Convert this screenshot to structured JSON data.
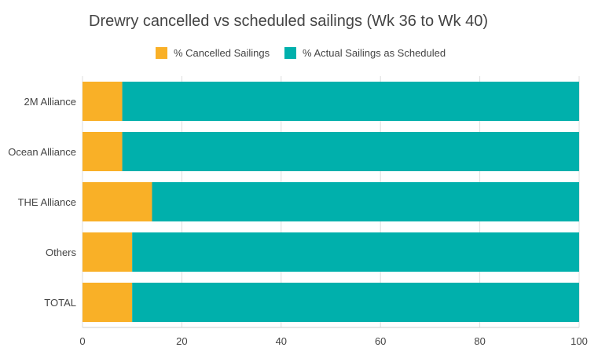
{
  "chart_data": {
    "type": "bar",
    "orientation": "horizontal",
    "stacked": true,
    "title": "Drewry cancelled vs scheduled sailings (Wk 36 to Wk 40)",
    "xlabel": "",
    "ylabel": "",
    "categories": [
      "2M Alliance",
      "Ocean Alliance",
      "THE Alliance",
      "Others",
      "TOTAL"
    ],
    "series": [
      {
        "name": "% Cancelled Sailings",
        "color": "#f9b027",
        "values": [
          8,
          8,
          14,
          10,
          10
        ]
      },
      {
        "name": "% Actual Sailings as Scheduled",
        "color": "#00b0ac",
        "values": [
          92,
          92,
          86,
          90,
          90
        ]
      }
    ],
    "xlim": [
      0,
      100
    ],
    "xticks": [
      "0",
      "20",
      "40",
      "60",
      "80",
      "100"
    ],
    "legend_position": "top",
    "grid": true
  }
}
